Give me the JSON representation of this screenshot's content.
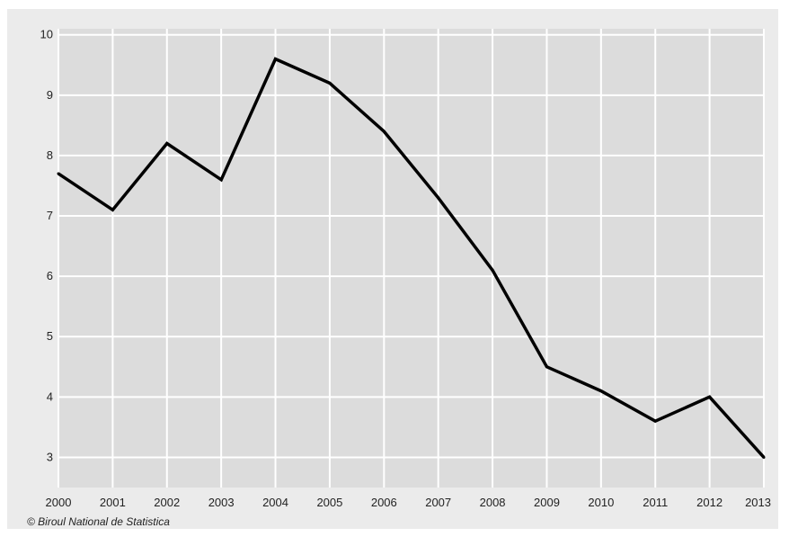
{
  "chart_data": {
    "type": "line",
    "title": "",
    "xlabel": "",
    "ylabel": "",
    "x": [
      "2000",
      "2001",
      "2002",
      "2003",
      "2004",
      "2005",
      "2006",
      "2007",
      "2008",
      "2009",
      "2010",
      "2011",
      "2012",
      "2013"
    ],
    "series": [
      {
        "values": [
          7.7,
          7.1,
          8.2,
          7.6,
          9.6,
          9.2,
          8.4,
          7.3,
          6.1,
          4.5,
          4.1,
          3.6,
          4.0,
          3.0
        ]
      }
    ],
    "ylim": [
      2.5,
      10.1
    ],
    "yticks": [
      3,
      4,
      5,
      6,
      7,
      8,
      9,
      10
    ],
    "grid": true,
    "legend": "none"
  },
  "credit": "© Biroul National de Statistica",
  "colors": {
    "plot_background": "#dcdcdc",
    "outer_background": "#ebebeb",
    "grid": "#ffffff",
    "line": "#000000"
  }
}
